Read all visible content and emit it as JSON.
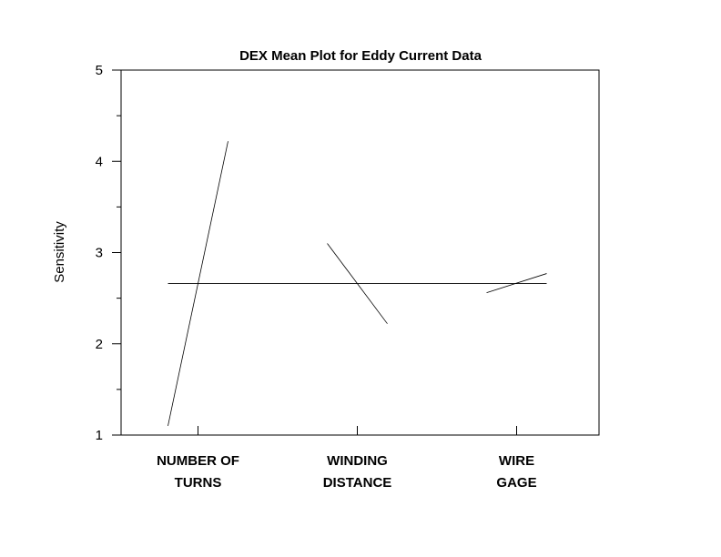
{
  "chart_data": {
    "type": "line",
    "title": "DEX Mean Plot for Eddy Current Data",
    "xlabel": "",
    "ylabel": "Sensitivity",
    "ylim": [
      1,
      5
    ],
    "yticks": [
      "1",
      "2",
      "3",
      "4",
      "5"
    ],
    "grid": false,
    "overall_mean": 2.66,
    "factors": [
      {
        "label_lines": [
          "NUMBER OF",
          "TURNS"
        ],
        "levels": [
          -1,
          1
        ],
        "means": [
          1.1,
          4.22
        ]
      },
      {
        "label_lines": [
          "WINDING",
          "DISTANCE"
        ],
        "levels": [
          -1,
          1
        ],
        "means": [
          3.1,
          2.22
        ]
      },
      {
        "label_lines": [
          "WIRE",
          "GAGE"
        ],
        "levels": [
          -1,
          1
        ],
        "means": [
          2.56,
          2.77
        ]
      }
    ]
  }
}
